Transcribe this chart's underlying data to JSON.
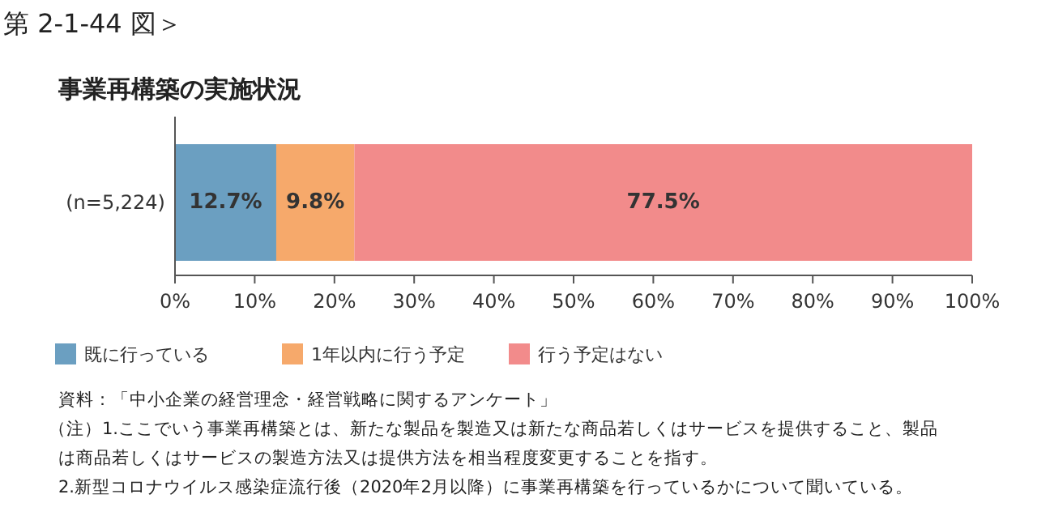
{
  "chart_data": {
    "type": "bar",
    "orientation": "horizontal",
    "stacked": true,
    "title": "事業再構築の実施状況",
    "subtitle": "第 2-1-44 図＞",
    "categories": [
      "(n=5,224)"
    ],
    "series": [
      {
        "name": "既に行っている",
        "color": "#6b9fc1",
        "values": [
          12.7
        ],
        "value_labels": [
          "12.7%"
        ]
      },
      {
        "name": "1年以内に行う予定",
        "color": "#f6a96b",
        "values": [
          9.8
        ],
        "value_labels": [
          "9.8%"
        ]
      },
      {
        "name": "行う予定はない",
        "color": "#f28b8b",
        "values": [
          77.5
        ],
        "value_labels": [
          "77.5%"
        ]
      }
    ],
    "xlim": [
      0,
      100
    ],
    "xticks": [
      {
        "value": 0,
        "label": "0%"
      },
      {
        "value": 10,
        "label": "10%"
      },
      {
        "value": 20,
        "label": "20%"
      },
      {
        "value": 30,
        "label": "30%"
      },
      {
        "value": 40,
        "label": "40%"
      },
      {
        "value": 50,
        "label": "50%"
      },
      {
        "value": 60,
        "label": "60%"
      },
      {
        "value": 70,
        "label": "70%"
      },
      {
        "value": 80,
        "label": "80%"
      },
      {
        "value": 90,
        "label": "90%"
      },
      {
        "value": 100,
        "label": "100%"
      }
    ],
    "grid": false,
    "legend": "bottom",
    "annotations": [
      "資料：「中小企業の経営理念・経営戦略に関するアンケート」",
      "（注）1.ここでいう事業再構築とは、新たな製品を製造又は新たな商品若しくはサービスを提供すること、製品",
      "は商品若しくはサービスの製造方法又は提供方法を相当程度変更することを指す。",
      "2.新型コロナウイルス感染症流行後（2020年2月以降）に事業再構築を行っているかについて聞いている。"
    ]
  }
}
